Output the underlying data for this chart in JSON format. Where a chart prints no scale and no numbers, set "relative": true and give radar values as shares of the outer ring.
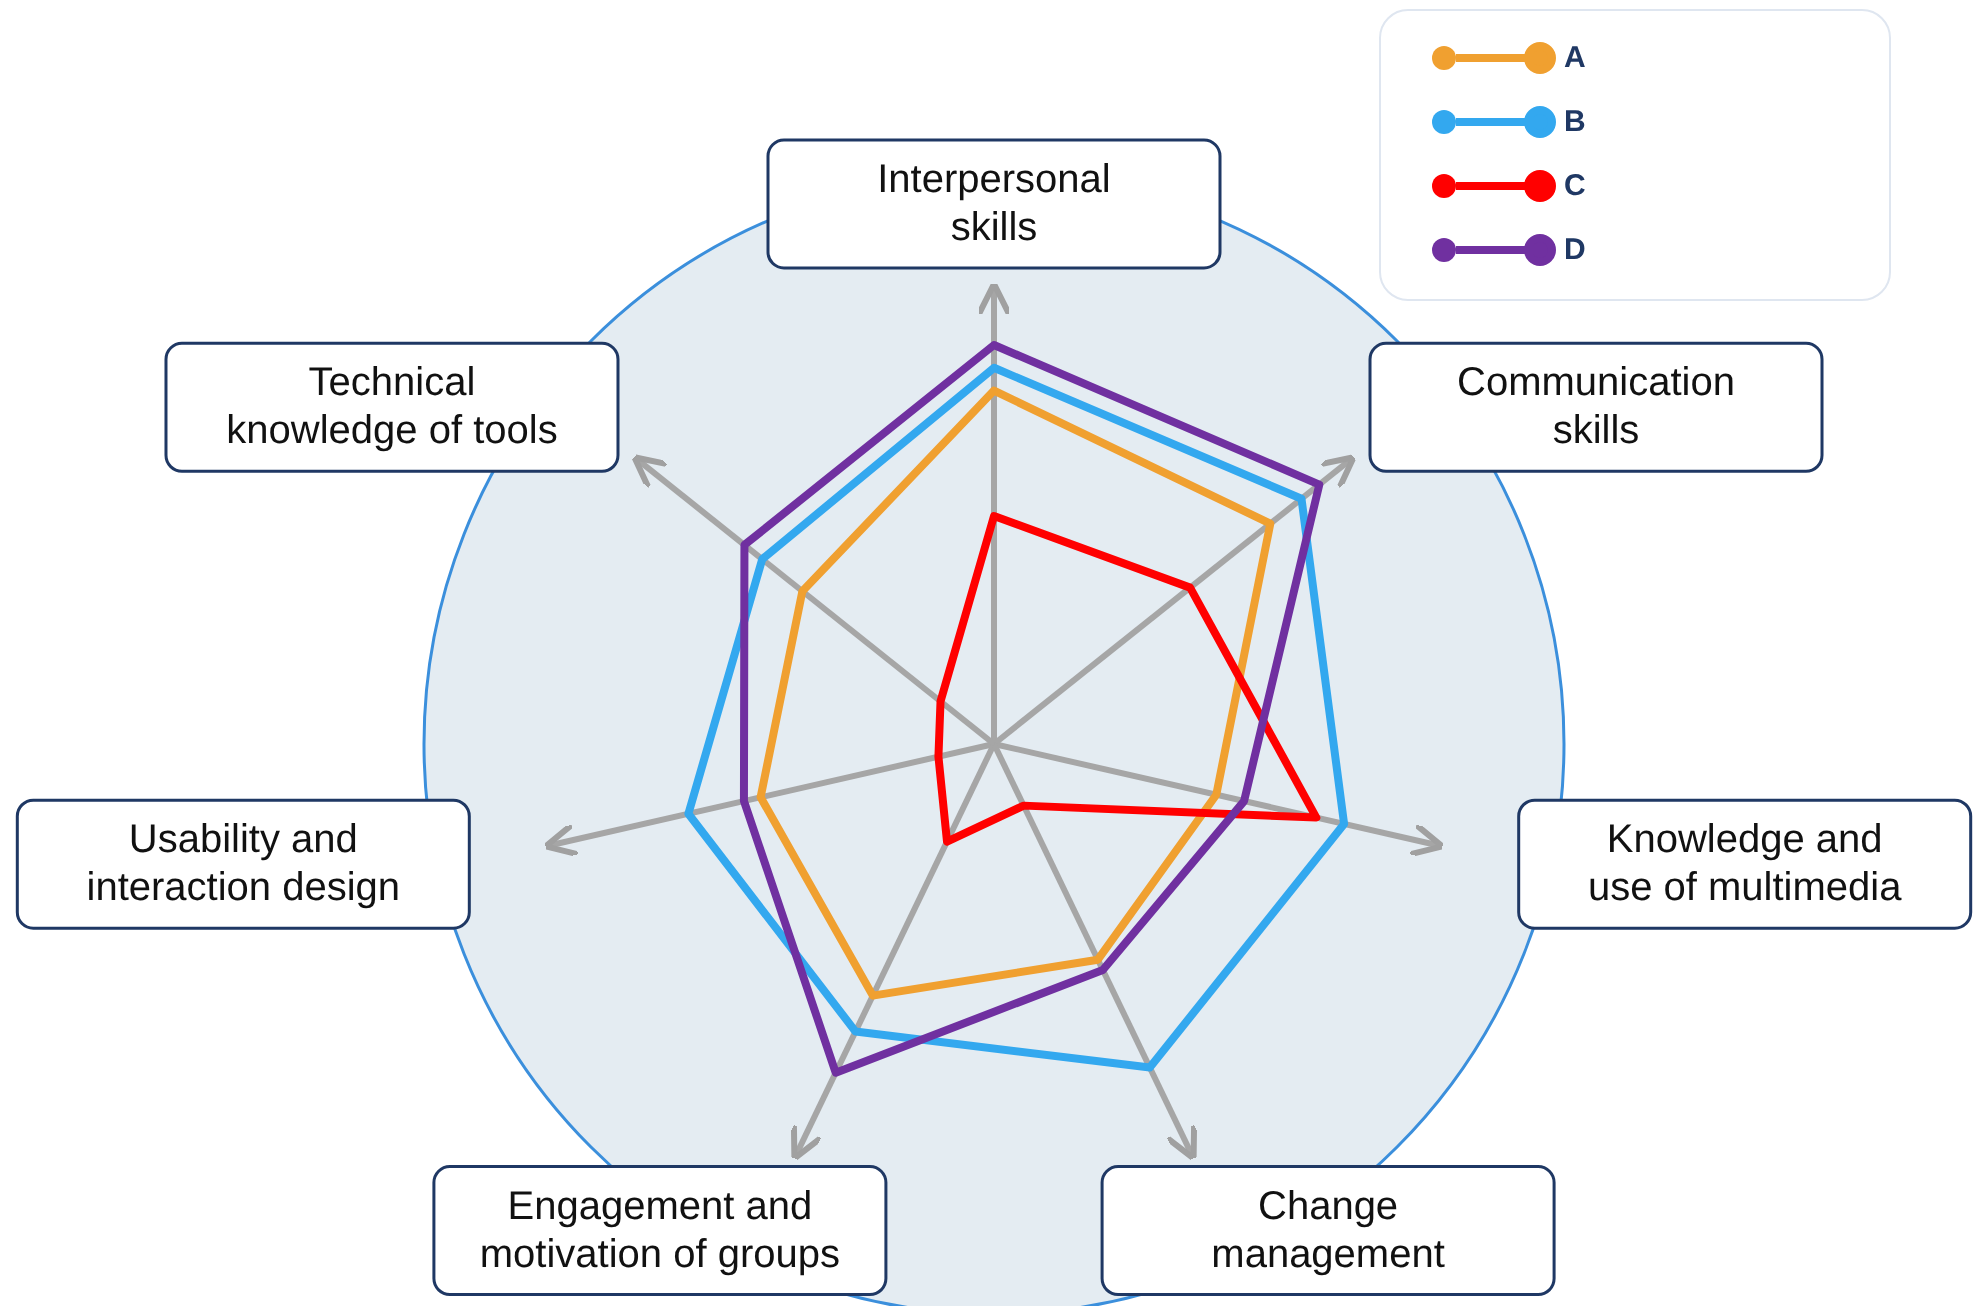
{
  "chart_data": {
    "type": "radar",
    "relative": true,
    "legend": "top right",
    "categories": [
      "Interpersonal skills",
      "Communication skills",
      "Knowledge and use of multimedia",
      "Change management",
      "Engagement and motivation of groups",
      "Usability and interaction design",
      "Technical knowledge of tools"
    ],
    "series": [
      {
        "name": "A",
        "color": "#f0a030",
        "values": [
          0.62,
          0.62,
          0.4,
          0.42,
          0.49,
          0.42,
          0.43
        ]
      },
      {
        "name": "B",
        "color": "#33a8ef",
        "values": [
          0.66,
          0.69,
          0.63,
          0.63,
          0.56,
          0.55,
          0.52
        ]
      },
      {
        "name": "C",
        "color": "#ff0000",
        "values": [
          0.4,
          0.44,
          0.58,
          0.12,
          0.19,
          0.1,
          0.12
        ]
      },
      {
        "name": "D",
        "color": "#7030a0",
        "values": [
          0.7,
          0.73,
          0.45,
          0.44,
          0.64,
          0.45,
          0.56
        ]
      }
    ]
  }
}
